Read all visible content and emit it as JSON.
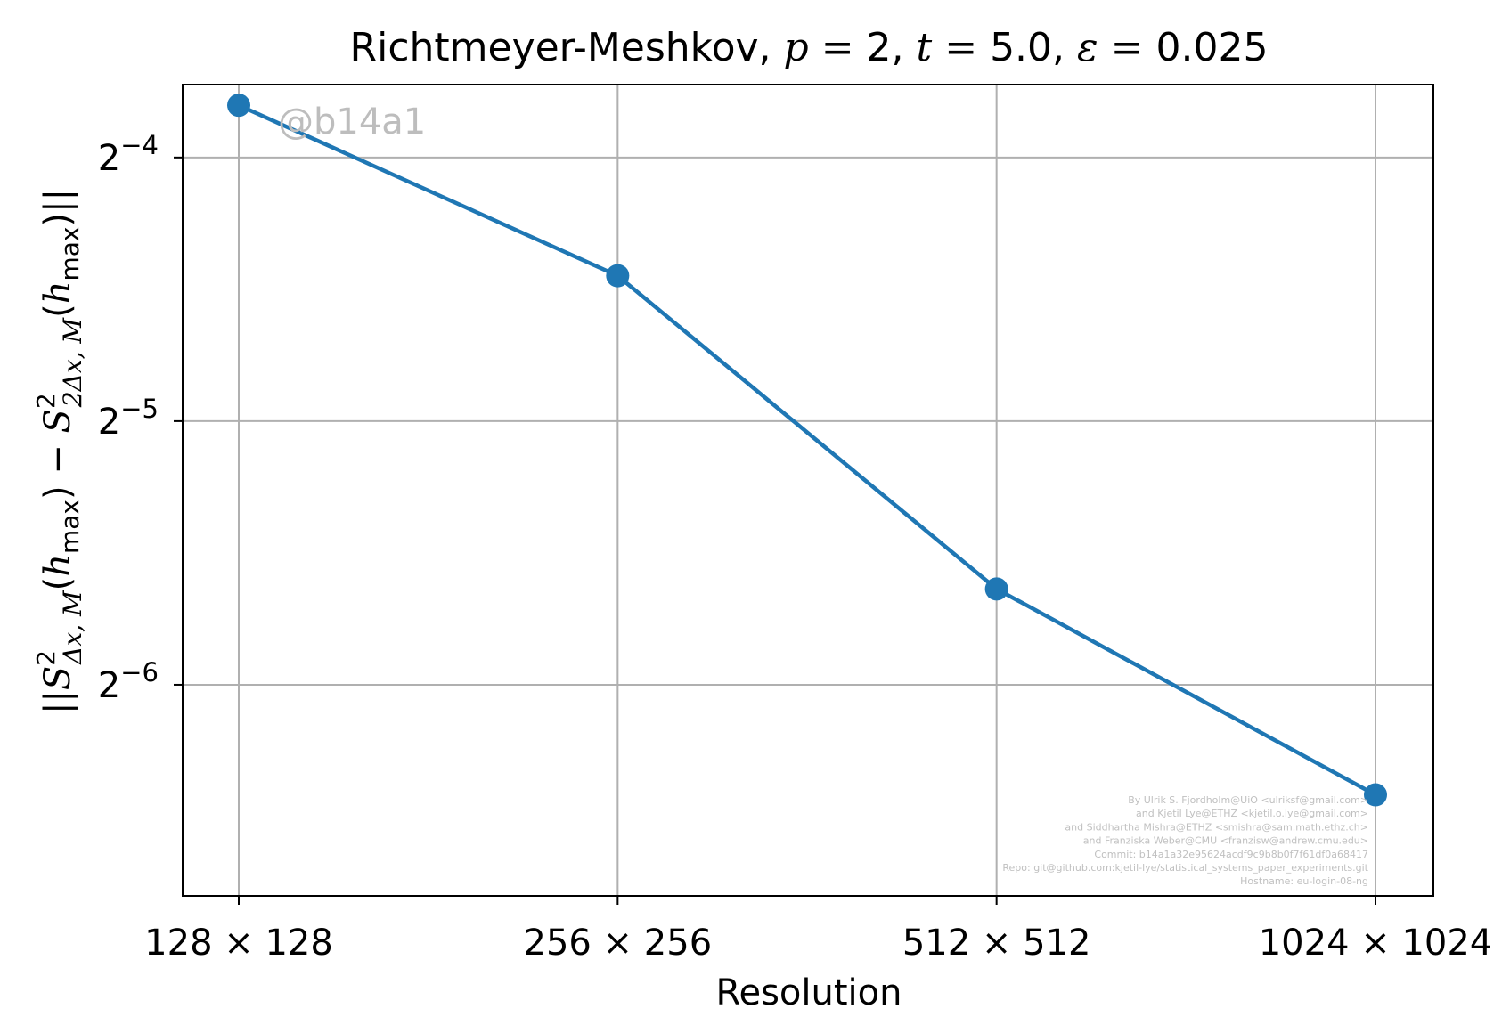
{
  "chart_data": {
    "type": "line",
    "title": "Richtmeyer-Meshkov, p = 2, t = 5.0, ε = 0.025",
    "title_parts": {
      "prefix": "Richtmeyer-Meshkov, ",
      "p": "2",
      "t": "5.0",
      "eps": "0.025"
    },
    "xlabel": "Resolution",
    "ylabel": "||S²_{Δx,M}(h_max) − S²_{2Δx,M}(h_max)||",
    "categories": [
      "128 × 128",
      "256 × 256",
      "512 × 512",
      "1024 × 1024"
    ],
    "y_scale": "log2",
    "y_ticks": [
      {
        "value": 0.0625,
        "label_base": "2",
        "label_exp": "−4"
      },
      {
        "value": 0.03125,
        "label_base": "2",
        "label_exp": "−5"
      },
      {
        "value": 0.015625,
        "label_base": "2",
        "label_exp": "−6"
      }
    ],
    "ylim": [
      0.00897,
      0.0757
    ],
    "series": [
      {
        "values": [
          0.0717,
          0.0458,
          0.0201,
          0.0117
        ],
        "color": "#1f77b4"
      }
    ],
    "grid": true,
    "watermark": "@b14a1",
    "credits": [
      "By Ulrik S. Fjordholm@UiO <ulriksf@gmail.com>",
      "and Kjetil Lye@ETHZ <kjetil.o.lye@gmail.com>",
      "and Siddhartha Mishra@ETHZ <smishra@sam.math.ethz.ch>",
      "and Franziska Weber@CMU <franzisw@andrew.cmu.edu>",
      "Commit: b14a1a32e95624acdf9c9b8b0f7f61df0a68417",
      "Repo: git@github.com:kjetil-lye/statistical_systems_paper_experiments.git",
      "Hostname: eu-login-08-ng"
    ]
  }
}
